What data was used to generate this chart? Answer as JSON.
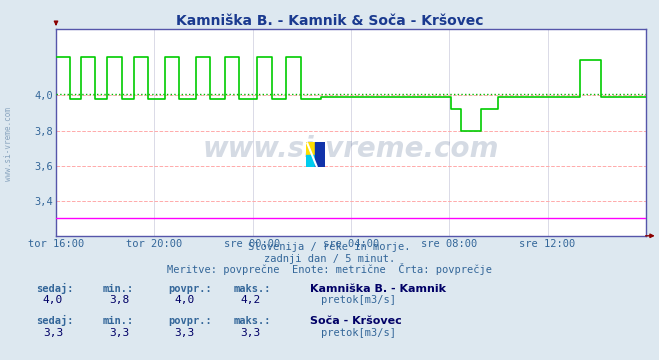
{
  "title": "Kamniška B. - Kamnik & Soča - Kršovec",
  "title_color": "#1a3a8f",
  "bg_color": "#dde8f0",
  "plot_bg_color": "#ffffff",
  "border_color": "#5555aa",
  "grid_color_h": "#ffaaaa",
  "grid_color_v": "#ccccdd",
  "ylim": [
    3.2,
    4.38
  ],
  "yticks": [
    3.4,
    3.6,
    3.8,
    4.0
  ],
  "xlabel_color": "#336699",
  "ylabel_color": "#336699",
  "xtick_labels": [
    "tor 16:00",
    "tor 20:00",
    "sre 00:00",
    "sre 04:00",
    "sre 08:00",
    "sre 12:00"
  ],
  "n_points": 288,
  "avg_line_value": 4.01,
  "avg_line_color": "#00bb00",
  "soca_value": 3.3,
  "soca_color": "#ff00ff",
  "kamnik_color": "#00cc00",
  "watermark_text": "www.si-vreme.com",
  "watermark_color": "#1a3a6e",
  "watermark_alpha": 0.18,
  "footer_line1": "Slovenija / reke in morje.",
  "footer_line2": "zadnji dan / 5 minut.",
  "footer_line3": "Meritve: povprečne  Enote: metrične  Črta: povprečje",
  "footer_color": "#336699",
  "stat_label_color": "#336699",
  "stat_value_color": "#000066",
  "kamnik_sedaj": "4,0",
  "kamnik_min": "3,8",
  "kamnik_povpr": "4,0",
  "kamnik_maks": "4,2",
  "kamnik_name": "Kamniška B. - Kamnik",
  "kamnik_unit": "pretok[m3/s]",
  "soca_sedaj": "3,3",
  "soca_min": "3,3",
  "soca_povpr": "3,3",
  "soca_maks": "3,3",
  "soca_name": "Soča - Kršovec",
  "soca_unit": "pretok[m3/s]"
}
